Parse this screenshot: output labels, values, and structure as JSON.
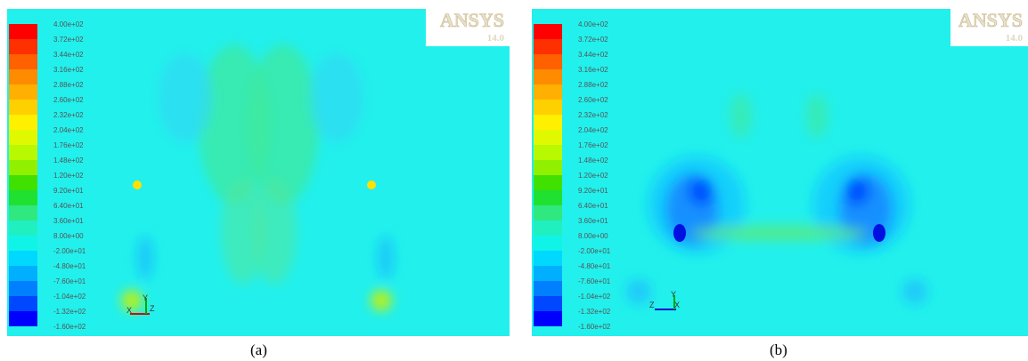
{
  "panels": [
    {
      "caption": "(a)",
      "logo": {
        "name": "ANSYS",
        "version": "14.0"
      },
      "triad": [
        "X",
        "Y",
        "Z"
      ],
      "colorbar_labels": [
        "4.00e+02",
        "3.72e+02",
        "3.44e+02",
        "3.16e+02",
        "2.88e+02",
        "2.60e+02",
        "2.32e+02",
        "2.04e+02",
        "1.76e+02",
        "1.48e+02",
        "1.20e+02",
        "9.20e+01",
        "6.40e+01",
        "3.60e+01",
        "8.00e+00",
        "-2.00e+01",
        "-4.80e+01",
        "-7.60e+01",
        "-1.04e+02",
        "-1.32e+02",
        "-1.60e+02"
      ]
    },
    {
      "caption": "(b)",
      "logo": {
        "name": "ANSYS",
        "version": "14.0"
      },
      "triad": [
        "Z",
        "Y",
        "X"
      ],
      "colorbar_labels": [
        "4.00e+02",
        "3.72e+02",
        "3.44e+02",
        "3.16e+02",
        "2.88e+02",
        "2.60e+02",
        "2.32e+02",
        "2.04e+02",
        "1.76e+02",
        "1.48e+02",
        "1.20e+02",
        "9.20e+01",
        "6.40e+01",
        "3.60e+01",
        "8.00e+00",
        "-2.00e+01",
        "-4.80e+01",
        "-7.60e+01",
        "-1.04e+02",
        "-1.32e+02",
        "-1.60e+02"
      ]
    }
  ],
  "colorbar_colors": [
    "#ff0000",
    "#ff3000",
    "#ff6000",
    "#ff8c00",
    "#ffb000",
    "#ffd000",
    "#fff000",
    "#e0f800",
    "#b8f800",
    "#90f000",
    "#40e000",
    "#20e030",
    "#30e880",
    "#20f0c0",
    "#10f4e8",
    "#00d8ff",
    "#00b0ff",
    "#0080ff",
    "#0048ff",
    "#0000ff"
  ]
}
